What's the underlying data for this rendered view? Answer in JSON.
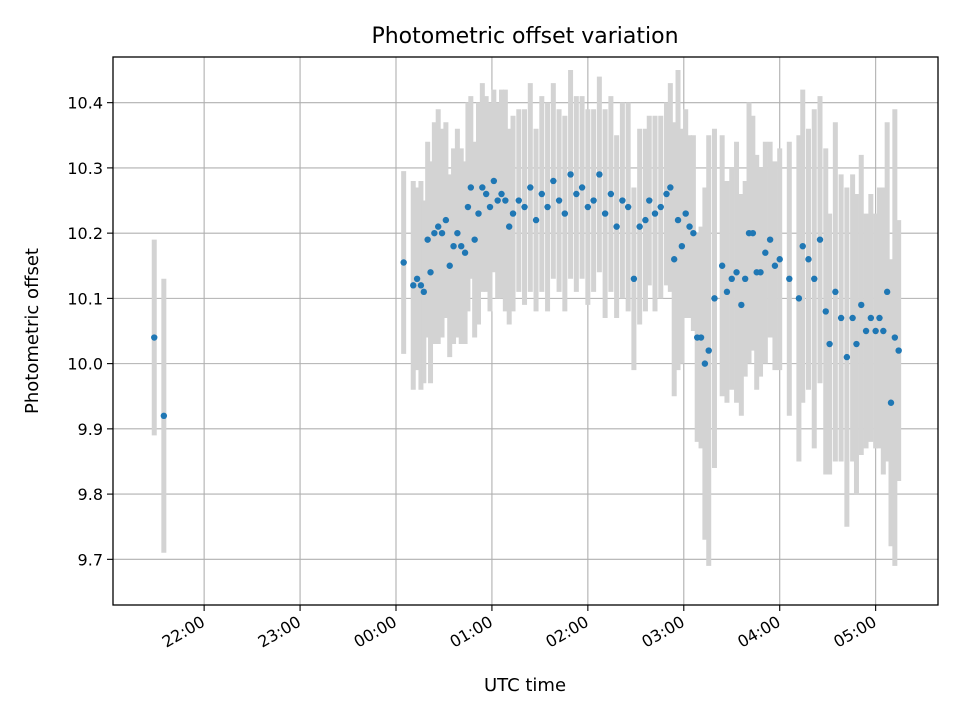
{
  "chart_data": {
    "type": "scatter",
    "title": "Photometric offset variation",
    "xlabel": "UTC time",
    "ylabel": "Photometric offset",
    "x_unit": "UTC time (hours, times after midnight written as 24+h)",
    "xlim": [
      21.05,
      29.65
    ],
    "ylim": [
      9.63,
      10.47
    ],
    "xticks": [
      {
        "value": 22,
        "label": "22:00"
      },
      {
        "value": 23,
        "label": "23:00"
      },
      {
        "value": 24,
        "label": "00:00"
      },
      {
        "value": 25,
        "label": "01:00"
      },
      {
        "value": 26,
        "label": "02:00"
      },
      {
        "value": 27,
        "label": "03:00"
      },
      {
        "value": 28,
        "label": "04:00"
      },
      {
        "value": 29,
        "label": "05:00"
      }
    ],
    "yticks": [
      {
        "value": 9.7,
        "label": "9.7"
      },
      {
        "value": 9.8,
        "label": "9.8"
      },
      {
        "value": 9.9,
        "label": "9.9"
      },
      {
        "value": 10.0,
        "label": "10.0"
      },
      {
        "value": 10.1,
        "label": "10.1"
      },
      {
        "value": 10.2,
        "label": "10.2"
      },
      {
        "value": 10.3,
        "label": "10.3"
      },
      {
        "value": 10.4,
        "label": "10.4"
      }
    ],
    "grid": true,
    "colors": {
      "point": "#1f77b4",
      "errorbar": "#d3d3d3",
      "grid": "#b0b0b0"
    },
    "series": [
      {
        "x": [
          21.48,
          21.58,
          24.08,
          24.18,
          24.22,
          24.26,
          24.29,
          24.33,
          24.36,
          24.4,
          24.44,
          24.48,
          24.52,
          24.56,
          24.6,
          24.64,
          24.68,
          24.72,
          24.75,
          24.78,
          24.82,
          24.86,
          24.9,
          24.94,
          24.98,
          25.02,
          25.06,
          25.1,
          25.14,
          25.18,
          25.22,
          25.28,
          25.34,
          25.4,
          25.46,
          25.52,
          25.58,
          25.64,
          25.7,
          25.76,
          25.82,
          25.88,
          25.94,
          26.0,
          26.06,
          26.12,
          26.18,
          26.24,
          26.3,
          26.36,
          26.42,
          26.48,
          26.54,
          26.6,
          26.64,
          26.7,
          26.76,
          26.82,
          26.86,
          26.9,
          26.94,
          26.98,
          27.02,
          27.06,
          27.1,
          27.14,
          27.18,
          27.22,
          27.26,
          27.32,
          27.4,
          27.45,
          27.5,
          27.55,
          27.6,
          27.64,
          27.68,
          27.72,
          27.76,
          27.8,
          27.85,
          27.9,
          27.95,
          28.0,
          28.1,
          28.2,
          28.24,
          28.3,
          28.36,
          28.42,
          28.48,
          28.52,
          28.58,
          28.64,
          28.7,
          28.76,
          28.8,
          28.85,
          28.9,
          28.95,
          29.0,
          29.04,
          29.08,
          29.12,
          29.16,
          29.2,
          29.24
        ],
        "y": [
          10.04,
          9.92,
          10.155,
          10.12,
          10.13,
          10.12,
          10.11,
          10.19,
          10.14,
          10.2,
          10.21,
          10.2,
          10.22,
          10.15,
          10.18,
          10.2,
          10.18,
          10.17,
          10.24,
          10.27,
          10.19,
          10.23,
          10.27,
          10.26,
          10.24,
          10.28,
          10.25,
          10.26,
          10.25,
          10.21,
          10.23,
          10.25,
          10.24,
          10.27,
          10.22,
          10.26,
          10.24,
          10.28,
          10.25,
          10.23,
          10.29,
          10.26,
          10.27,
          10.24,
          10.25,
          10.29,
          10.23,
          10.26,
          10.21,
          10.25,
          10.24,
          10.13,
          10.21,
          10.22,
          10.25,
          10.23,
          10.24,
          10.26,
          10.27,
          10.16,
          10.22,
          10.18,
          10.23,
          10.21,
          10.2,
          10.04,
          10.04,
          10.0,
          10.02,
          10.1,
          10.15,
          10.11,
          10.13,
          10.14,
          10.09,
          10.13,
          10.2,
          10.2,
          10.14,
          10.14,
          10.17,
          10.19,
          10.15,
          10.16,
          10.13,
          10.1,
          10.18,
          10.16,
          10.13,
          10.19,
          10.08,
          10.03,
          10.11,
          10.07,
          10.01,
          10.07,
          10.03,
          10.09,
          10.05,
          10.07,
          10.05,
          10.07,
          10.05,
          10.11,
          9.94,
          10.04,
          10.02
        ],
        "err": [
          0.15,
          0.21,
          0.14,
          0.16,
          0.14,
          0.16,
          0.14,
          0.15,
          0.17,
          0.17,
          0.18,
          0.16,
          0.15,
          0.14,
          0.15,
          0.16,
          0.15,
          0.14,
          0.16,
          0.14,
          0.15,
          0.17,
          0.16,
          0.15,
          0.16,
          0.14,
          0.15,
          0.16,
          0.17,
          0.15,
          0.15,
          0.14,
          0.15,
          0.16,
          0.14,
          0.15,
          0.16,
          0.15,
          0.14,
          0.15,
          0.16,
          0.15,
          0.14,
          0.15,
          0.14,
          0.15,
          0.16,
          0.15,
          0.14,
          0.15,
          0.16,
          0.14,
          0.15,
          0.14,
          0.13,
          0.15,
          0.14,
          0.14,
          0.16,
          0.21,
          0.23,
          0.18,
          0.16,
          0.14,
          0.15,
          0.16,
          0.17,
          0.27,
          0.33,
          0.26,
          0.2,
          0.17,
          0.17,
          0.2,
          0.17,
          0.15,
          0.2,
          0.18,
          0.18,
          0.16,
          0.17,
          0.15,
          0.16,
          0.17,
          0.21,
          0.25,
          0.24,
          0.2,
          0.26,
          0.22,
          0.25,
          0.2,
          0.26,
          0.22,
          0.26,
          0.22,
          0.23,
          0.23,
          0.18,
          0.19,
          0.18,
          0.2,
          0.22,
          0.26,
          0.22,
          0.35,
          0.2
        ]
      }
    ]
  }
}
